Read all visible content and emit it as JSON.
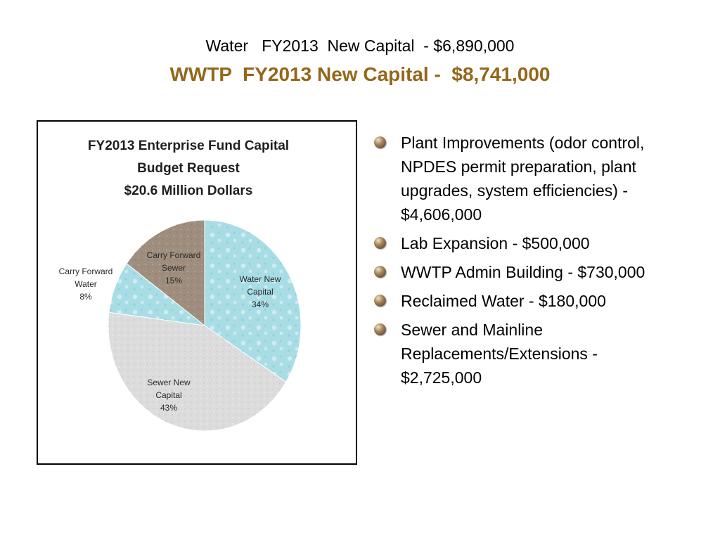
{
  "header": {
    "title_water": "Water   FY2013  New Capital  - $6,890,000",
    "title_wwtp": "WWTP  FY2013 New Capital -  $8,741,000"
  },
  "colors": {
    "accent_title": "#94671b",
    "water_new": "#a8dde6",
    "carry_forward_water": "#a8dde6",
    "carry_forward_sewer": "#9f8e7d",
    "sewer_new": "#dcdcdc"
  },
  "chart_data": {
    "type": "pie",
    "title": [
      "FY2013 Enterprise Fund Capital",
      "Budget Request",
      "$20.6 Million Dollars"
    ],
    "slices": [
      {
        "label": [
          "Water New",
          "Capital",
          "34%"
        ],
        "value": 34
      },
      {
        "label": [
          "Sewer New",
          "Capital",
          "43%"
        ],
        "value": 43
      },
      {
        "label": [
          "Carry Forward",
          "Water",
          "8%"
        ],
        "value": 8
      },
      {
        "label": [
          "Carry Forward",
          "Sewer",
          "15%"
        ],
        "value": 15
      }
    ]
  },
  "bullets": [
    {
      "text": "Plant Improvements (odor control, NPDES permit preparation, plant upgrades, system efficiencies) - $4,606,000"
    },
    {
      "text": "Lab Expansion -  $500,000"
    },
    {
      "text": "WWTP Admin Building - $730,000"
    },
    {
      "text": "Reclaimed Water  - $180,000"
    },
    {
      "text": "Sewer and Mainline Replacements/Extensions - $2,725,000"
    }
  ]
}
